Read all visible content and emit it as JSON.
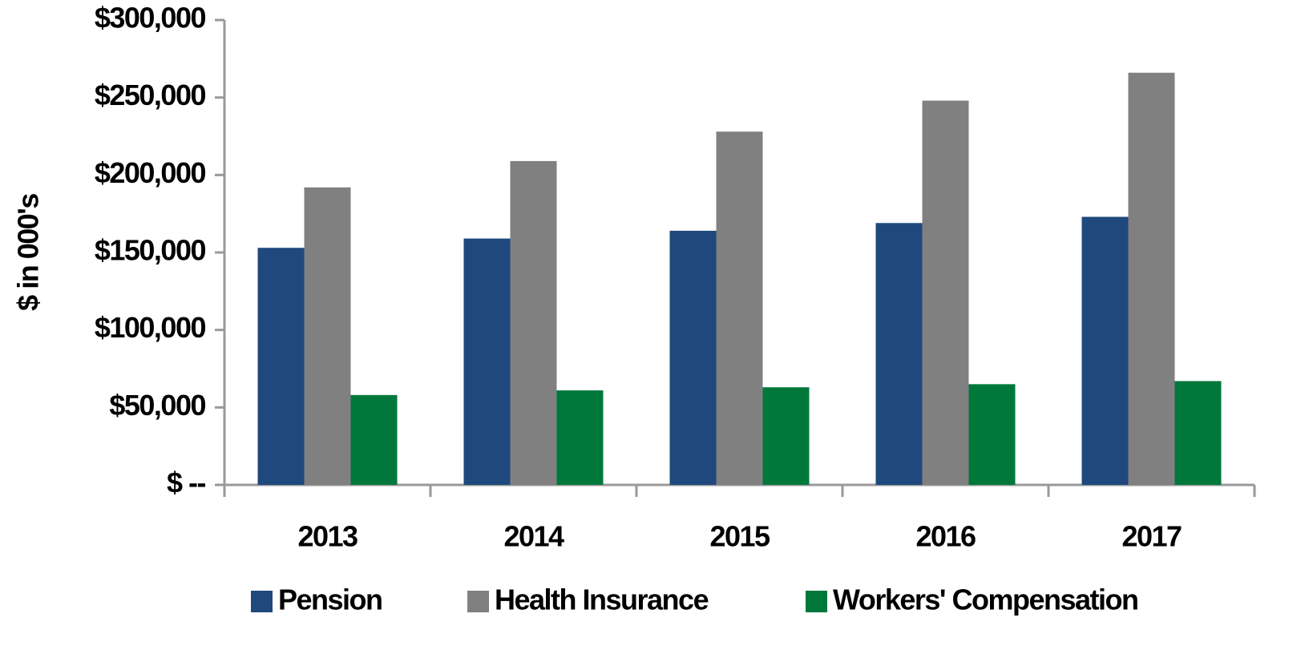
{
  "chart_data": {
    "type": "bar",
    "y_axis_label": "$ in 000's",
    "categories": [
      "2013",
      "2014",
      "2015",
      "2016",
      "2017"
    ],
    "series": [
      {
        "name": "Pension",
        "color": "#1f497d",
        "values": [
          153000,
          159000,
          164000,
          169000,
          173000
        ]
      },
      {
        "name": "Health Insurance",
        "color": "#808080",
        "values": [
          192000,
          209000,
          228000,
          248000,
          266000
        ]
      },
      {
        "name": "Workers' Compensation",
        "color": "#00783c",
        "values": [
          58000,
          61000,
          63000,
          65000,
          67000
        ]
      }
    ],
    "ylim": [
      0,
      300000
    ],
    "yticks": [
      {
        "value": 0,
        "label": "$ --"
      },
      {
        "value": 50000,
        "label": "$50,000"
      },
      {
        "value": 100000,
        "label": "$100,000"
      },
      {
        "value": 150000,
        "label": "$150,000"
      },
      {
        "value": 200000,
        "label": "$200,000"
      },
      {
        "value": 250000,
        "label": "$250,000"
      },
      {
        "value": 300000,
        "label": "$300,000"
      }
    ],
    "grid": false,
    "legend": "bottom"
  }
}
